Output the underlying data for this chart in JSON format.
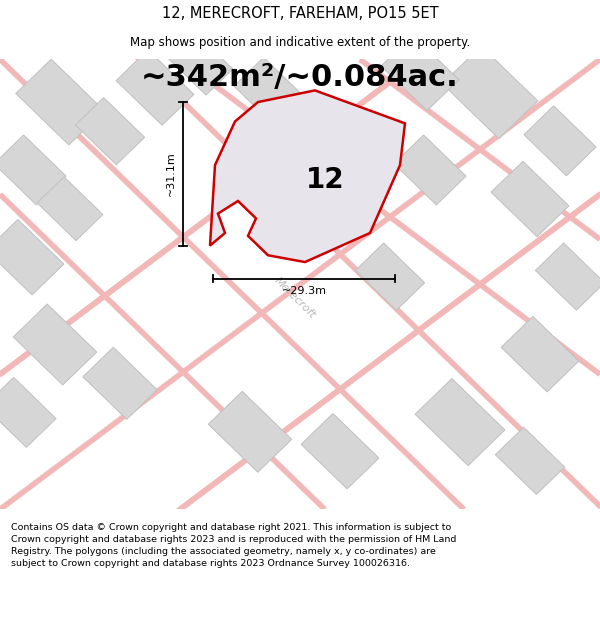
{
  "title_line1": "12, MERECROFT, FAREHAM, PO15 5ET",
  "title_line2": "Map shows position and indicative extent of the property.",
  "area_text": "~342m²/~0.084ac.",
  "label_number": "12",
  "label_width": "~29.3m",
  "label_height": "~31.1m",
  "street_name": "Merecroft",
  "footer_text": "Contains OS data © Crown copyright and database right 2021. This information is subject to Crown copyright and database rights 2023 and is reproduced with the permission of HM Land Registry. The polygons (including the associated geometry, namely x, y co-ordinates) are subject to Crown copyright and database rights 2023 Ordnance Survey 100026316.",
  "bg_color": "#efefef",
  "map_bg": "#efefef",
  "road_color": "#f2b8b8",
  "building_color": "#d6d6d6",
  "building_edge_color": "#c0c0c0",
  "plot_fill": "#e8e4ec",
  "plot_edge_color": "#cc0000",
  "plot_edge_width": 1.8,
  "title_fontsize": 10.5,
  "subtitle_fontsize": 8.5,
  "area_fontsize": 22,
  "number_fontsize": 20,
  "dim_fontsize": 8,
  "street_fontsize": 8,
  "footer_fontsize": 6.8,
  "white_bg": "#ffffff"
}
